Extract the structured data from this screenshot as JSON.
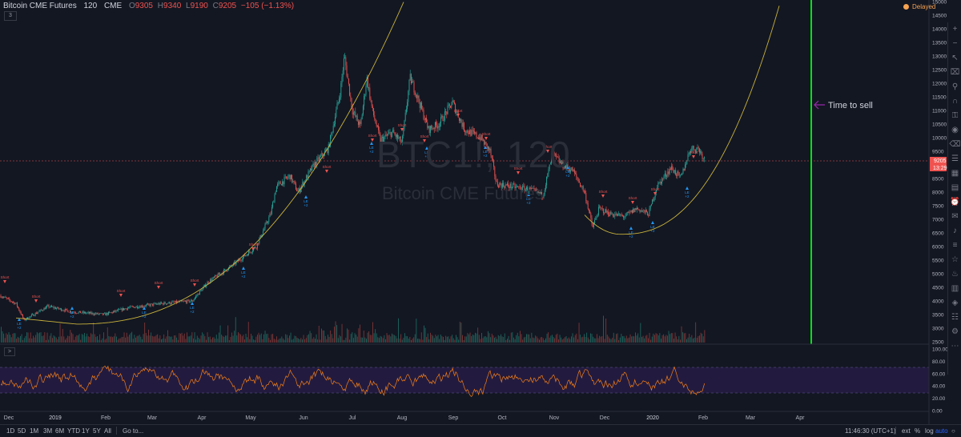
{
  "legend": {
    "symbol_desc": "Bitcoin CME Futures",
    "interval": "120",
    "exchange": "CME",
    "o_label": "O",
    "o_value": "9305",
    "h_label": "H",
    "h_value": "9340",
    "l_label": "L",
    "l_value": "9190",
    "c_label": "C",
    "c_value": "9205",
    "change": "−105 (−1.13%)",
    "collapse_label": "3"
  },
  "status": {
    "delayed_label": "Delayed",
    "delayed_color": "#f7a350"
  },
  "watermark": {
    "symbol": "BTC1!, 120",
    "description": "Bitcoin CME Futures"
  },
  "annotation": {
    "text": "Time to sell",
    "arrow_color": "#9c27b0",
    "line_color": "#00e60f"
  },
  "price_axis": {
    "ticks": [
      "15000",
      "14500",
      "14000",
      "13500",
      "13000",
      "12500",
      "12000",
      "11500",
      "11000",
      "10500",
      "10000",
      "9500",
      "9000",
      "8500",
      "8000",
      "7500",
      "7000",
      "6500",
      "6000",
      "5500",
      "5000",
      "4500",
      "4000",
      "3500",
      "3000",
      "2500"
    ],
    "last_price": "9205",
    "countdown": "13:29",
    "last_price_color": "#ef5350"
  },
  "rsi_axis": {
    "ticks": [
      "100.00",
      "80.00",
      "60.00",
      "40.00",
      "20.00",
      "0.00"
    ],
    "collapse_label": ">"
  },
  "time_axis": {
    "labels": [
      "Dec",
      "2019",
      "Feb",
      "Mar",
      "Apr",
      "May",
      "Jun",
      "Jul",
      "Aug",
      "Sep",
      "Oct",
      "Nov",
      "Dec",
      "2020",
      "Feb",
      "Mar",
      "Apr"
    ]
  },
  "signal_labels": {
    "short": "Short",
    "long": "LE",
    "qty": "+2"
  },
  "bottom_bar": {
    "timeframes": [
      "1D",
      "5D",
      "1M",
      "3M",
      "6M",
      "YTD",
      "1Y",
      "5Y",
      "All"
    ],
    "goto_label": "Go to...",
    "clock": "11:46:30 (UTC+1)",
    "ext_label": "ext",
    "percent_label": "%",
    "log_label": "log",
    "auto_label": "auto"
  },
  "colors": {
    "background": "#131722",
    "up": "#26a69a",
    "down": "#ef5350",
    "curve": "#c9b23b",
    "rsi_line": "#f57f17",
    "rsi_band": "#2a1d4a",
    "signal_short": "#ef5350",
    "signal_long": "#2196f3"
  },
  "toolbar_icons": [
    "plus-icon",
    "minus-icon",
    "cursor-icon",
    "measure-icon",
    "zoom-icon",
    "magnet-icon",
    "lock-icon",
    "eye-icon",
    "trash-icon",
    "list-icon",
    "calendar-icon",
    "calendar2-icon",
    "alert-icon",
    "chat-icon",
    "bell-icon",
    "layers-icon",
    "star-icon",
    "hotlist-icon",
    "data-icon",
    "ideas-icon",
    "news-icon",
    "settings-icon",
    "more-icon"
  ]
}
